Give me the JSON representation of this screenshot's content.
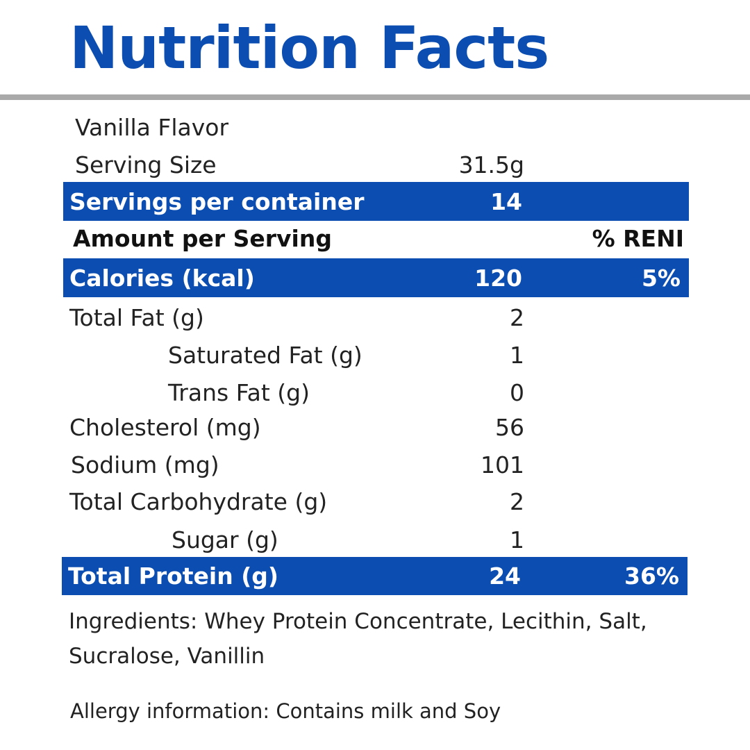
{
  "title": "Nutrition Facts",
  "flavor": "Vanilla Flavor",
  "serving_size": {
    "label": "Serving Size",
    "amount": "31.5g"
  },
  "servings": {
    "label": "Servings per container",
    "amount": "14"
  },
  "header": {
    "label": "Amount per Serving",
    "percent": "% RENI"
  },
  "calories": {
    "label": "Calories (kcal)",
    "amount": "120",
    "percent": "5%"
  },
  "rows": [
    {
      "label": "Total Fat (g)",
      "amount": "2"
    },
    {
      "label": "Saturated Fat (g)",
      "amount": "1"
    },
    {
      "label": "Trans Fat (g)",
      "amount": "0"
    },
    {
      "label": "Cholesterol (mg)",
      "amount": "56"
    },
    {
      "label": "Sodium (mg)",
      "amount": "101"
    },
    {
      "label": "Total Carbohydrate (g)",
      "amount": "2"
    },
    {
      "label": "Sugar (g)",
      "amount": "1"
    }
  ],
  "protein": {
    "label": "Total Protein (g)",
    "amount": "24",
    "percent": "36%"
  },
  "ingredients": [
    "Ingredients: Whey Protein Concentrate, Lecithin, Salt,",
    "Sucralose, Vanillin"
  ],
  "allergy": "Allergy information: Contains milk and Soy"
}
